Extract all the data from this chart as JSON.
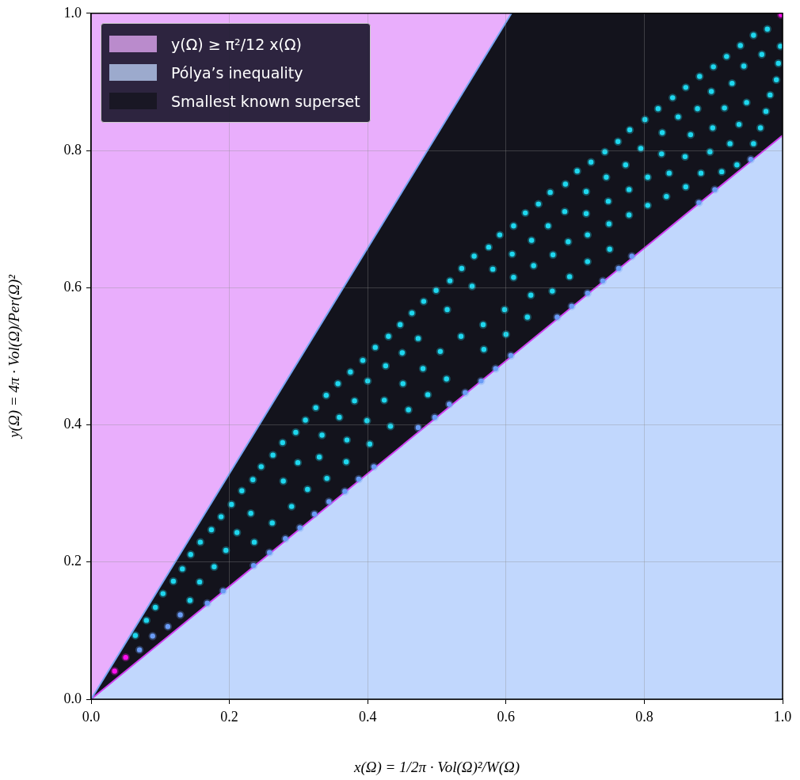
{
  "chart_data": {
    "type": "scatter",
    "xlabel": "x(Ω) = 1/2π · Vol(Ω)²/W(Ω)",
    "ylabel": "y(Ω) = 4π · Vol(Ω)/Per(Ω)²",
    "xlim": [
      0,
      1
    ],
    "ylim": [
      0,
      1
    ],
    "xticks": [
      {
        "value": 0,
        "label": "0.0"
      },
      0.2,
      0.4,
      0.6,
      0.8,
      {
        "value": 1,
        "label": "1.0"
      }
    ],
    "yticks": [
      {
        "value": 0,
        "label": "0.0"
      },
      0.2,
      0.4,
      0.6,
      0.8,
      {
        "value": 1,
        "label": "1.0"
      }
    ],
    "grid": true,
    "legend": "top left",
    "series": [
      {
        "type": "area",
        "marker": "none",
        "name": "y(Ω) ≥ π²/12 x(Ω)",
        "color": "#e9aefc",
        "x": [
          0,
          0.608
        ],
        "values": [
          0,
          1
        ]
      },
      {
        "type": "area",
        "marker": "none",
        "name": "Pólya’s inequality",
        "color": "#c1d7fd",
        "x": [
          0,
          0.608,
          1
        ],
        "values": [
          0,
          0.5,
          0.822
        ]
      },
      {
        "type": "area",
        "marker": "none",
        "name": "Smallest known superset",
        "color": "#13131c",
        "x": [
          0,
          0.608,
          1
        ],
        "values": [
          0,
          1,
          1
        ]
      },
      {
        "marker": "circle",
        "color": "#ff10ee",
        "x": [
          0.034,
          0.05,
          0.998
        ],
        "values": [
          0.041,
          0.061,
          0.998
        ]
      },
      {
        "marker": "circle",
        "color": "#6a9cf6",
        "x": [
          0.07,
          0.089,
          0.111,
          0.129,
          0.168,
          0.191,
          0.235,
          0.258,
          0.281,
          0.302,
          0.323,
          0.344,
          0.367,
          0.387,
          0.409,
          0.473,
          0.497,
          0.518,
          0.541,
          0.564,
          0.585,
          0.607,
          0.674,
          0.695,
          0.718,
          0.74,
          0.763,
          0.782,
          0.879,
          0.902,
          0.954
        ],
        "values": [
          0.072,
          0.092,
          0.106,
          0.123,
          0.14,
          0.158,
          0.195,
          0.214,
          0.234,
          0.25,
          0.27,
          0.288,
          0.303,
          0.321,
          0.339,
          0.396,
          0.411,
          0.43,
          0.447,
          0.464,
          0.482,
          0.501,
          0.557,
          0.573,
          0.592,
          0.61,
          0.628,
          0.646,
          0.724,
          0.743,
          0.787
        ]
      },
      {
        "marker": "circle",
        "color": "#1fd8f0",
        "x": [
          0.064,
          0.08,
          0.093,
          0.104,
          0.119,
          0.132,
          0.144,
          0.158,
          0.174,
          0.188,
          0.203,
          0.218,
          0.234,
          0.246,
          0.263,
          0.277,
          0.296,
          0.31,
          0.325,
          0.34,
          0.357,
          0.375,
          0.393,
          0.411,
          0.43,
          0.447,
          0.464,
          0.481,
          0.499,
          0.519,
          0.536,
          0.554,
          0.575,
          0.591,
          0.611,
          0.628,
          0.647,
          0.664,
          0.686,
          0.703,
          0.723,
          0.743,
          0.762,
          0.779,
          0.801,
          0.82,
          0.841,
          0.86,
          0.88,
          0.9,
          0.919,
          0.939,
          0.958,
          0.978,
          0.997,
          0.994,
          0.991,
          0.982,
          0.976,
          0.968,
          0.958,
          0.236,
          0.195,
          0.211,
          0.231,
          0.157,
          0.178,
          0.143,
          0.262,
          0.29,
          0.313,
          0.341,
          0.369,
          0.37,
          0.399,
          0.424,
          0.403,
          0.359,
          0.381,
          0.4,
          0.426,
          0.33,
          0.334,
          0.299,
          0.278,
          0.45,
          0.473,
          0.515,
          0.551,
          0.581,
          0.609,
          0.451,
          0.48,
          0.505,
          0.535,
          0.567,
          0.598,
          0.459,
          0.487,
          0.514,
          0.568,
          0.6,
          0.433,
          0.637,
          0.661,
          0.685,
          0.716,
          0.745,
          0.773,
          0.611,
          0.64,
          0.668,
          0.69,
          0.716,
          0.748,
          0.778,
          0.636,
          0.667,
          0.692,
          0.718,
          0.75,
          0.718,
          0.749,
          0.778,
          0.631,
          0.795,
          0.826,
          0.849,
          0.877,
          0.897,
          0.927,
          0.944,
          0.97,
          0.805,
          0.825,
          0.859,
          0.867,
          0.899,
          0.916,
          0.948,
          0.805,
          0.832,
          0.86,
          0.836,
          0.882,
          0.895,
          0.912,
          0.924,
          0.937,
          0.934
        ],
        "values": [
          0.093,
          0.115,
          0.134,
          0.154,
          0.172,
          0.19,
          0.211,
          0.229,
          0.247,
          0.266,
          0.284,
          0.304,
          0.32,
          0.339,
          0.356,
          0.374,
          0.389,
          0.407,
          0.425,
          0.443,
          0.46,
          0.477,
          0.494,
          0.513,
          0.529,
          0.546,
          0.563,
          0.58,
          0.596,
          0.61,
          0.628,
          0.646,
          0.659,
          0.677,
          0.69,
          0.709,
          0.722,
          0.739,
          0.751,
          0.77,
          0.783,
          0.798,
          0.813,
          0.83,
          0.845,
          0.861,
          0.877,
          0.892,
          0.908,
          0.922,
          0.937,
          0.953,
          0.968,
          0.977,
          0.952,
          0.927,
          0.903,
          0.881,
          0.857,
          0.833,
          0.81,
          0.229,
          0.217,
          0.243,
          0.271,
          0.171,
          0.193,
          0.144,
          0.257,
          0.281,
          0.306,
          0.322,
          0.346,
          0.378,
          0.406,
          0.436,
          0.372,
          0.411,
          0.435,
          0.464,
          0.486,
          0.353,
          0.385,
          0.345,
          0.318,
          0.505,
          0.526,
          0.568,
          0.602,
          0.627,
          0.649,
          0.46,
          0.482,
          0.507,
          0.529,
          0.546,
          0.568,
          0.422,
          0.444,
          0.467,
          0.51,
          0.532,
          0.398,
          0.669,
          0.69,
          0.711,
          0.74,
          0.761,
          0.779,
          0.615,
          0.632,
          0.648,
          0.667,
          0.708,
          0.726,
          0.743,
          0.589,
          0.595,
          0.616,
          0.638,
          0.656,
          0.677,
          0.693,
          0.706,
          0.557,
          0.803,
          0.826,
          0.849,
          0.861,
          0.886,
          0.898,
          0.923,
          0.94,
          0.761,
          0.795,
          0.791,
          0.823,
          0.833,
          0.862,
          0.87,
          0.72,
          0.733,
          0.747,
          0.767,
          0.767,
          0.798,
          0.769,
          0.81,
          0.838,
          0.779
        ]
      }
    ]
  }
}
